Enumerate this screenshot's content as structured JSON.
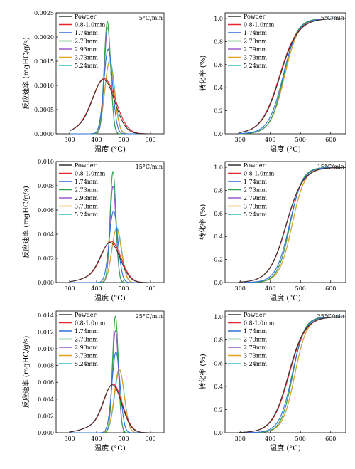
{
  "figure": {
    "colors": {
      "Powder": "#333333",
      "0.8-1.0mm": "#e8262a",
      "1.74mm": "#2e6fd9",
      "2.73mm": "#2ea84a",
      "2.93mm": "#9b59c9",
      "2.79mm": "#9b59c9",
      "3.73mm": "#e6a019",
      "5.24mm": "#2fbcc9"
    },
    "xlabel": "温度 (°C)",
    "ylabel_rate": "反应速率 (mgHC/g/s)",
    "ylabel_conv": "转化率 (%)"
  },
  "chart_data": [
    {
      "type": "line",
      "panel": "rate-5",
      "annotation": "5°C/min",
      "xlabel": "温度 (°C)",
      "ylabel": "反应速率 (mgHC/g/s)",
      "xlim": [
        250,
        650
      ],
      "ylim": [
        0,
        0.0025
      ],
      "xticks": [
        "300",
        "400",
        "500",
        "600"
      ],
      "yticks": [
        "0.0000",
        "0.0005",
        "0.0010",
        "0.0015",
        "0.0020",
        "0.0025"
      ],
      "legend": [
        "Powder",
        "0.8-1.0mm",
        "1.74mm",
        "2.73mm",
        "2.93mm",
        "3.73mm",
        "5.24mm"
      ],
      "series": [
        {
          "name": "Powder",
          "peak_x": 428,
          "peak_y": 0.00108,
          "width": 40
        },
        {
          "name": "0.8-1.0mm",
          "peak_x": 430,
          "peak_y": 0.0011,
          "width": 42
        },
        {
          "name": "1.74mm",
          "peak_x": 443,
          "peak_y": 0.00175,
          "width": 16
        },
        {
          "name": "2.73mm",
          "peak_x": 440,
          "peak_y": 0.00232,
          "width": 12
        },
        {
          "name": "2.93mm",
          "peak_x": 441,
          "peak_y": 0.0022,
          "width": 12
        },
        {
          "name": "3.73mm",
          "peak_x": 448,
          "peak_y": 0.00148,
          "width": 18
        },
        {
          "name": "5.24mm",
          "peak_x": 449,
          "peak_y": 0.00152,
          "width": 18
        }
      ]
    },
    {
      "type": "line",
      "panel": "conv-5",
      "annotation": "5°C/min",
      "xlabel": "温度 (°C)",
      "ylabel": "转化率 (%)",
      "xlim": [
        250,
        650
      ],
      "ylim": [
        0,
        1.05
      ],
      "xticks": [
        "300",
        "400",
        "500",
        "600"
      ],
      "yticks": [
        "0.0",
        "0.2",
        "0.4",
        "0.6",
        "0.8",
        "1.0"
      ],
      "legend": [
        "Powder",
        "0.8-1.0mm",
        "1.74mm",
        "2.73mm",
        "2.79mm",
        "3.73mm",
        "5.24mm"
      ],
      "series": [
        {
          "name": "Powder",
          "mid_x": 432,
          "scale": 30
        },
        {
          "name": "0.8-1.0mm",
          "mid_x": 430,
          "scale": 30
        },
        {
          "name": "1.74mm",
          "mid_x": 442,
          "scale": 24
        },
        {
          "name": "2.73mm",
          "mid_x": 444,
          "scale": 22
        },
        {
          "name": "2.79mm",
          "mid_x": 444,
          "scale": 22
        },
        {
          "name": "3.73mm",
          "mid_x": 447,
          "scale": 23
        },
        {
          "name": "5.24mm",
          "mid_x": 447,
          "scale": 23
        }
      ]
    },
    {
      "type": "line",
      "panel": "rate-15",
      "annotation": "15°C/min",
      "xlabel": "温度 (°C)",
      "ylabel": "反应速率 (mgHC/g/s)",
      "xlim": [
        250,
        650
      ],
      "ylim": [
        0,
        0.01
      ],
      "xticks": [
        "300",
        "400",
        "500",
        "600"
      ],
      "yticks": [
        "0.000",
        "0.002",
        "0.004",
        "0.006",
        "0.008",
        "0.010"
      ],
      "legend": [
        "Powder",
        "0.8-1.0mm",
        "1.74mm",
        "2.73mm",
        "2.93mm",
        "3.73mm",
        "5.24mm"
      ],
      "series": [
        {
          "name": "Powder",
          "peak_x": 452,
          "peak_y": 0.0032,
          "width": 36
        },
        {
          "name": "0.8-1.0mm",
          "peak_x": 455,
          "peak_y": 0.0033,
          "width": 36
        },
        {
          "name": "1.74mm",
          "peak_x": 463,
          "peak_y": 0.0059,
          "width": 16
        },
        {
          "name": "2.73mm",
          "peak_x": 461,
          "peak_y": 0.0092,
          "width": 11
        },
        {
          "name": "2.93mm",
          "peak_x": 461,
          "peak_y": 0.008,
          "width": 11
        },
        {
          "name": "3.73mm",
          "peak_x": 474,
          "peak_y": 0.0044,
          "width": 18
        },
        {
          "name": "5.24mm",
          "peak_x": 475,
          "peak_y": 0.0045,
          "width": 18
        }
      ]
    },
    {
      "type": "line",
      "panel": "conv-15",
      "annotation": "15°C/min",
      "xlabel": "温度 (°C)",
      "ylabel": "转化率 (%)",
      "xlim": [
        250,
        650
      ],
      "ylim": [
        0,
        1.05
      ],
      "xticks": [
        "300",
        "400",
        "500",
        "600"
      ],
      "yticks": [
        "0.0",
        "0.2",
        "0.4",
        "0.6",
        "0.8",
        "1.0"
      ],
      "legend": [
        "Powder",
        "0.8-1.0mm",
        "1.74mm",
        "2.73mm",
        "2.79mm",
        "3.73mm",
        "5.24mm"
      ],
      "series": [
        {
          "name": "Powder",
          "mid_x": 452,
          "scale": 28
        },
        {
          "name": "0.8-1.0mm",
          "mid_x": 453,
          "scale": 28
        },
        {
          "name": "1.74mm",
          "mid_x": 463,
          "scale": 22
        },
        {
          "name": "2.73mm",
          "mid_x": 465,
          "scale": 20
        },
        {
          "name": "2.79mm",
          "mid_x": 465,
          "scale": 20
        },
        {
          "name": "3.73mm",
          "mid_x": 472,
          "scale": 21
        },
        {
          "name": "5.24mm",
          "mid_x": 472,
          "scale": 21
        }
      ]
    },
    {
      "type": "line",
      "panel": "rate-25",
      "annotation": "25°C/min",
      "xlabel": "温度 (°C)",
      "ylabel": "反应速率 (mgHC/g/s)",
      "xlim": [
        250,
        650
      ],
      "ylim": [
        0,
        0.0145
      ],
      "xticks": [
        "300",
        "400",
        "500",
        "600"
      ],
      "yticks": [
        "0.000",
        "0.002",
        "0.004",
        "0.006",
        "0.008",
        "0.010",
        "0.012",
        "0.014"
      ],
      "legend": [
        "Powder",
        "0.8-1.0mm",
        "1.74mm",
        "2.73mm",
        "2.93mm",
        "3.73mm",
        "5.24mm"
      ],
      "series": [
        {
          "name": "Powder",
          "peak_x": 460,
          "peak_y": 0.0055,
          "width": 34
        },
        {
          "name": "0.8-1.0mm",
          "peak_x": 462,
          "peak_y": 0.0056,
          "width": 34
        },
        {
          "name": "1.74mm",
          "peak_x": 472,
          "peak_y": 0.0096,
          "width": 15
        },
        {
          "name": "2.73mm",
          "peak_x": 470,
          "peak_y": 0.0139,
          "width": 11
        },
        {
          "name": "2.93mm",
          "peak_x": 470,
          "peak_y": 0.0122,
          "width": 11
        },
        {
          "name": "3.73mm",
          "peak_x": 484,
          "peak_y": 0.0076,
          "width": 18
        },
        {
          "name": "5.24mm",
          "peak_x": 485,
          "peak_y": 0.0074,
          "width": 18
        }
      ]
    },
    {
      "type": "line",
      "panel": "conv-25",
      "annotation": "25°C/min",
      "xlabel": "温度 (°C)",
      "ylabel": "转化率 (%)",
      "xlim": [
        250,
        650
      ],
      "ylim": [
        0,
        1.05
      ],
      "xticks": [
        "300",
        "400",
        "500",
        "600"
      ],
      "yticks": [
        "0.0",
        "0.2",
        "0.4",
        "0.6",
        "0.8",
        "1.0"
      ],
      "legend": [
        "Powder",
        "0.8-1.0mm",
        "1.74mm",
        "2.73mm",
        "2.79mm",
        "3.73mm",
        "5.24mm"
      ],
      "series": [
        {
          "name": "Powder",
          "mid_x": 460,
          "scale": 27
        },
        {
          "name": "0.8-1.0mm",
          "mid_x": 462,
          "scale": 27
        },
        {
          "name": "1.74mm",
          "mid_x": 472,
          "scale": 21
        },
        {
          "name": "2.73mm",
          "mid_x": 474,
          "scale": 19
        },
        {
          "name": "2.79mm",
          "mid_x": 474,
          "scale": 19
        },
        {
          "name": "3.73mm",
          "mid_x": 481,
          "scale": 20
        },
        {
          "name": "5.24mm",
          "mid_x": 481,
          "scale": 20
        }
      ]
    }
  ]
}
